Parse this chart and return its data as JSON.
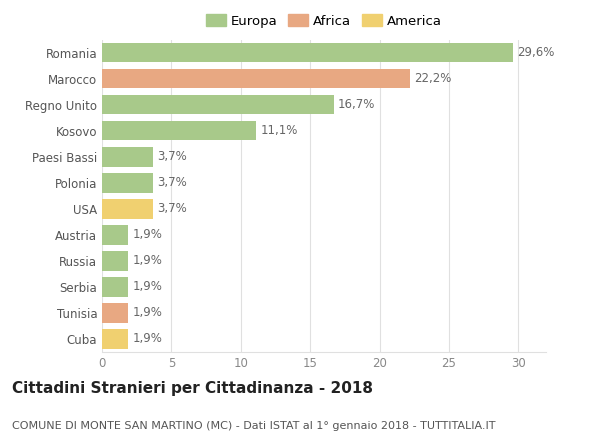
{
  "categories": [
    "Romania",
    "Marocco",
    "Regno Unito",
    "Kosovo",
    "Paesi Bassi",
    "Polonia",
    "USA",
    "Austria",
    "Russia",
    "Serbia",
    "Tunisia",
    "Cuba"
  ],
  "values": [
    29.6,
    22.2,
    16.7,
    11.1,
    3.7,
    3.7,
    3.7,
    1.9,
    1.9,
    1.9,
    1.9,
    1.9
  ],
  "labels": [
    "29,6%",
    "22,2%",
    "16,7%",
    "11,1%",
    "3,7%",
    "3,7%",
    "3,7%",
    "1,9%",
    "1,9%",
    "1,9%",
    "1,9%",
    "1,9%"
  ],
  "colors": [
    "#a8c98a",
    "#e8a882",
    "#a8c98a",
    "#a8c98a",
    "#a8c98a",
    "#a8c98a",
    "#f0d070",
    "#a8c98a",
    "#a8c98a",
    "#a8c98a",
    "#e8a882",
    "#f0d070"
  ],
  "legend_colors": {
    "Europa": "#a8c98a",
    "Africa": "#e8a882",
    "America": "#f0d070"
  },
  "xlim": [
    0,
    32
  ],
  "xticks": [
    0,
    5,
    10,
    15,
    20,
    25,
    30
  ],
  "title": "Cittadini Stranieri per Cittadinanza - 2018",
  "subtitle": "COMUNE DI MONTE SAN MARTINO (MC) - Dati ISTAT al 1° gennaio 2018 - TUTTITALIA.IT",
  "background_color": "#ffffff",
  "grid_color": "#e0e0e0",
  "bar_height": 0.75,
  "title_fontsize": 11,
  "subtitle_fontsize": 8,
  "label_fontsize": 8.5,
  "tick_fontsize": 8.5,
  "legend_fontsize": 9.5
}
